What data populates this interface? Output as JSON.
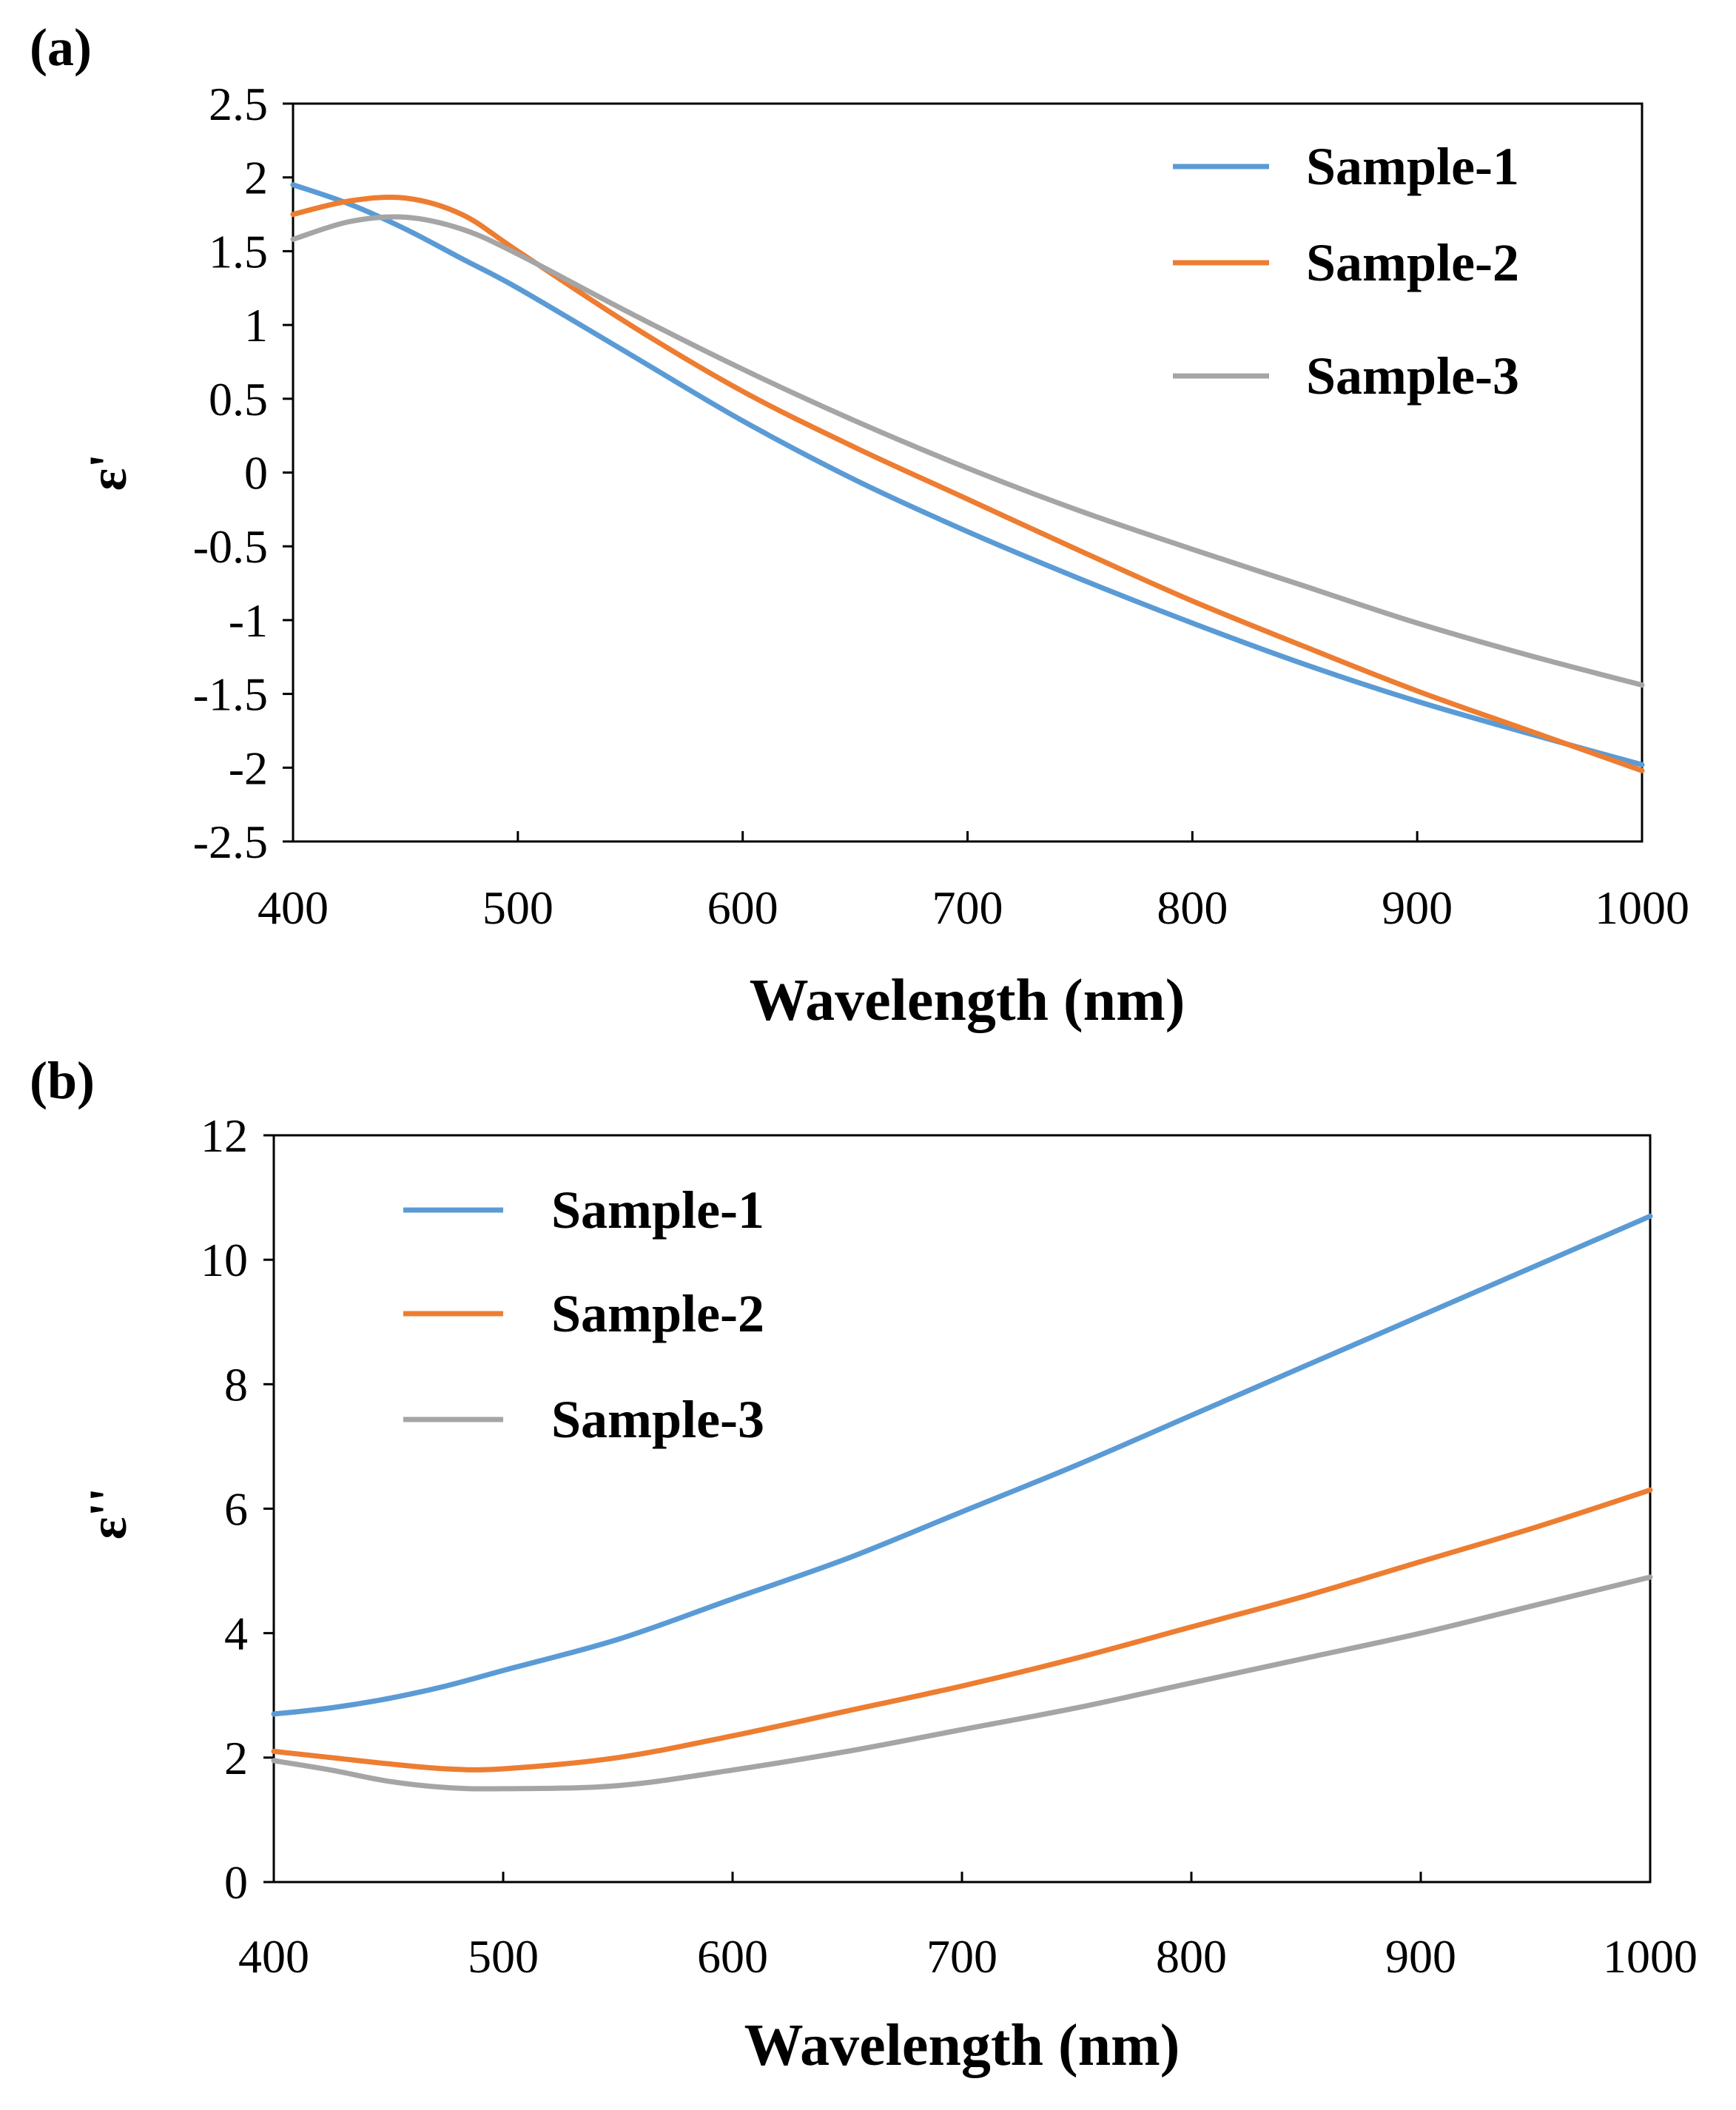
{
  "chart_data": [
    {
      "panel": "(a)",
      "type": "line",
      "xlabel": "Wavelength (nm)",
      "ylabel": "ε'",
      "xlim": [
        400,
        1000
      ],
      "ylim": [
        -2.5,
        2.5
      ],
      "xticks": [
        "400",
        "500",
        "600",
        "700",
        "800",
        "900",
        "1000"
      ],
      "yticks": [
        "2.5",
        "2",
        "1.5",
        "1",
        "0.5",
        "0",
        "-0.5",
        "-1",
        "-1.5",
        "-2",
        "-2.5"
      ],
      "legend": "top-right",
      "x": [
        400,
        425,
        450,
        475,
        500,
        550,
        600,
        650,
        700,
        750,
        800,
        850,
        900,
        950,
        1000
      ],
      "series": [
        {
          "name": "Sample-1",
          "color": "#5B9BD5",
          "values": [
            1.95,
            1.82,
            1.65,
            1.45,
            1.25,
            0.8,
            0.35,
            -0.05,
            -0.4,
            -0.72,
            -1.02,
            -1.3,
            -1.55,
            -1.77,
            -1.98
          ]
        },
        {
          "name": "Sample-2",
          "color": "#ED7D31",
          "values": [
            1.75,
            1.84,
            1.86,
            1.75,
            1.5,
            1.0,
            0.55,
            0.17,
            -0.18,
            -0.53,
            -0.87,
            -1.18,
            -1.48,
            -1.75,
            -2.02
          ]
        },
        {
          "name": "Sample-3",
          "color": "#A5A5A5",
          "values": [
            1.58,
            1.7,
            1.73,
            1.65,
            1.48,
            1.08,
            0.7,
            0.35,
            0.03,
            -0.26,
            -0.52,
            -0.77,
            -1.02,
            -1.24,
            -1.44
          ]
        }
      ]
    },
    {
      "panel": "(b)",
      "type": "line",
      "xlabel": "Wavelength (nm)",
      "ylabel": "ε''",
      "xlim": [
        400,
        1000
      ],
      "ylim": [
        0,
        12
      ],
      "xticks": [
        "400",
        "500",
        "600",
        "700",
        "800",
        "900",
        "1000"
      ],
      "yticks": [
        "12",
        "10",
        "8",
        "6",
        "4",
        "2",
        "0"
      ],
      "legend": "top-left",
      "x": [
        400,
        425,
        450,
        475,
        500,
        550,
        600,
        650,
        700,
        750,
        800,
        850,
        900,
        950,
        1000
      ],
      "series": [
        {
          "name": "Sample-1",
          "color": "#5B9BD5",
          "values": [
            2.7,
            2.8,
            2.95,
            3.15,
            3.4,
            3.9,
            4.55,
            5.2,
            5.95,
            6.7,
            7.5,
            8.3,
            9.1,
            9.9,
            10.7
          ]
        },
        {
          "name": "Sample-2",
          "color": "#ED7D31",
          "values": [
            2.1,
            2.0,
            1.9,
            1.82,
            1.82,
            2.0,
            2.35,
            2.75,
            3.15,
            3.6,
            4.1,
            4.6,
            5.15,
            5.7,
            6.3
          ]
        },
        {
          "name": "Sample-3",
          "color": "#A5A5A5",
          "values": [
            1.95,
            1.8,
            1.62,
            1.52,
            1.5,
            1.55,
            1.8,
            2.1,
            2.45,
            2.8,
            3.2,
            3.6,
            4.0,
            4.45,
            4.9
          ]
        }
      ]
    }
  ]
}
